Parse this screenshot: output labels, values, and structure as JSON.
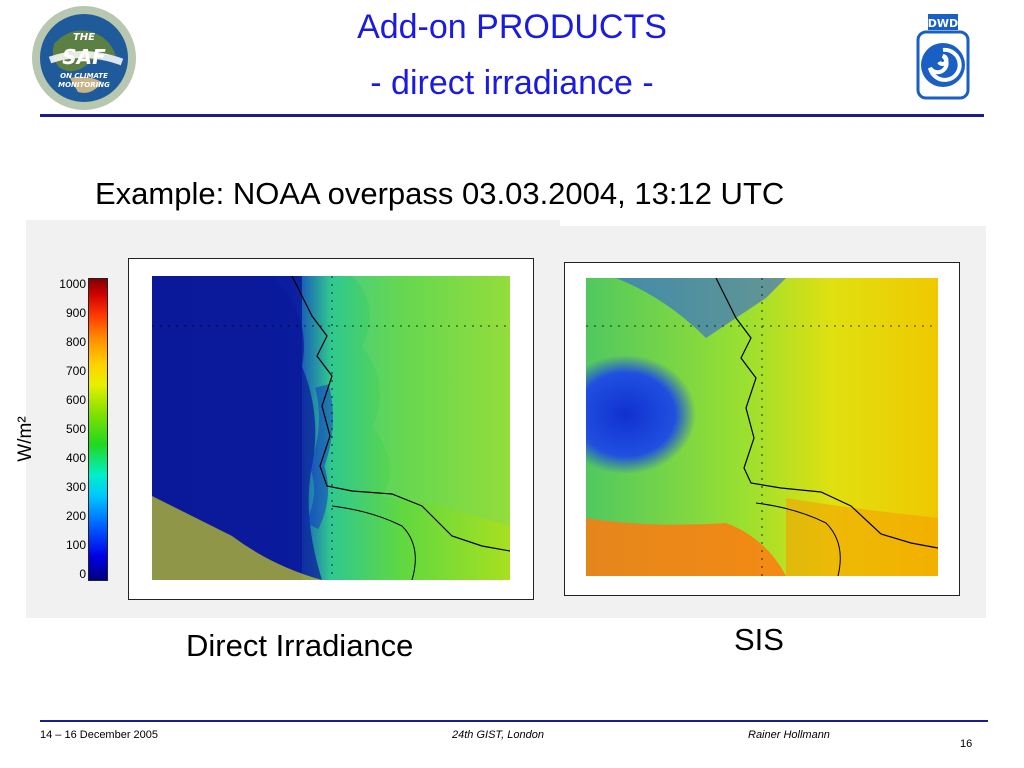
{
  "header": {
    "title_line1": "Add-on PRODUCTS",
    "title_line2": "- direct irradiance -"
  },
  "logos": {
    "saf_logo": {
      "icon": "saf-globe-logo",
      "lettering": [
        "THE",
        "SAF",
        "ON CLIMATE MONITORING"
      ]
    },
    "dwd_logo": {
      "icon": "dwd-logo",
      "lettering": "DWD"
    }
  },
  "subtitle": "Example: NOAA overpass 03.03.2004, 13:12 UTC",
  "colorbar": {
    "unit": "W/m²",
    "ticks": [
      "1000",
      "900",
      "800",
      "700",
      "600",
      "500",
      "400",
      "300",
      "200",
      "100",
      "0"
    ]
  },
  "panels": {
    "left_caption": "Direct Irradiance",
    "right_caption": "SIS"
  },
  "footer": {
    "date": "14 – 16 December 2005",
    "event": "24th GIST, London",
    "author": "Rainer Hollmann",
    "page": "16"
  }
}
